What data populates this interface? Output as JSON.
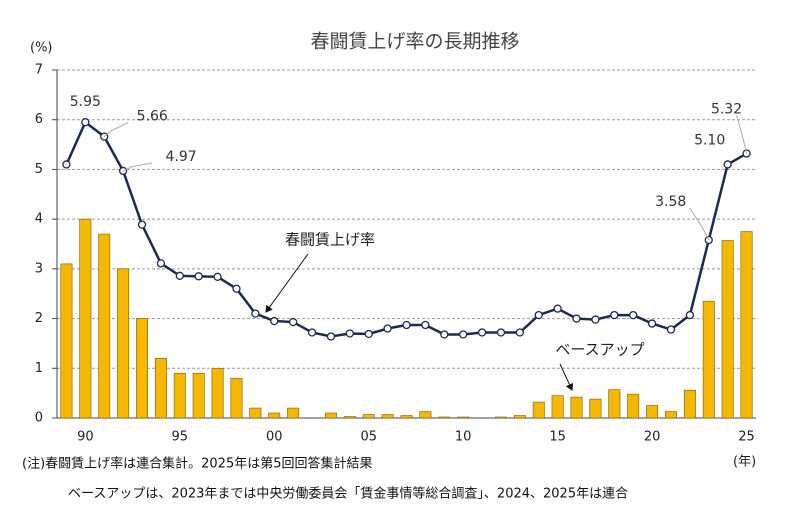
{
  "chart_data": {
    "type": "bar_line",
    "title": "春闘賃上げ率の長期推移",
    "y_unit": "(%)",
    "x_unit": "(年)",
    "notes": [
      "(注)春闘賃上げ率は連合集計。2025年は第5回回答集計結果",
      "ベースアップは、2023年までは中央労働委員会「賃金事情等総合調査」、2024、2025年は連合"
    ],
    "categories": [
      null,
      "90",
      null,
      null,
      null,
      null,
      "95",
      null,
      null,
      null,
      null,
      "00",
      null,
      null,
      null,
      null,
      "05",
      null,
      null,
      null,
      null,
      "10",
      null,
      null,
      null,
      null,
      "15",
      null,
      null,
      null,
      null,
      "20",
      null,
      null,
      null,
      null,
      "25"
    ],
    "ylim": [
      0,
      7
    ],
    "yticks": [
      0,
      1,
      2,
      3,
      4,
      5,
      6,
      7
    ],
    "grid": true,
    "series": [
      {
        "name": "ベースアップ",
        "type": "bar",
        "color": "#f5b800",
        "values": [
          3.1,
          4.0,
          3.7,
          3.0,
          2.0,
          1.2,
          0.9,
          0.9,
          1.0,
          0.8,
          0.2,
          0.1,
          0.2,
          0.0,
          0.1,
          0.03,
          0.07,
          0.07,
          0.05,
          0.13,
          0.02,
          0.02,
          0.0,
          0.02,
          0.05,
          0.32,
          0.45,
          0.42,
          0.38,
          0.57,
          0.48,
          0.25,
          0.13,
          0.56,
          2.35,
          3.57,
          3.75
        ]
      },
      {
        "name": "春闘賃上げ率",
        "type": "line",
        "color": "#1b2a4e",
        "values": [
          5.1,
          5.95,
          5.66,
          4.97,
          3.89,
          3.11,
          2.86,
          2.85,
          2.84,
          2.6,
          2.1,
          1.95,
          1.93,
          1.72,
          1.64,
          1.7,
          1.69,
          1.8,
          1.87,
          1.87,
          1.68,
          1.68,
          1.72,
          1.72,
          1.72,
          2.07,
          2.2,
          2.0,
          1.98,
          2.07,
          2.07,
          1.9,
          1.78,
          2.07,
          3.58,
          5.1,
          5.32
        ],
        "value_labels": [
          null,
          "5.95",
          "5.66",
          "4.97",
          null,
          null,
          null,
          null,
          null,
          null,
          null,
          null,
          null,
          null,
          null,
          null,
          null,
          null,
          null,
          null,
          null,
          null,
          null,
          null,
          null,
          null,
          null,
          null,
          null,
          null,
          null,
          null,
          null,
          null,
          "3.58",
          "5.10",
          "5.32"
        ]
      }
    ]
  }
}
